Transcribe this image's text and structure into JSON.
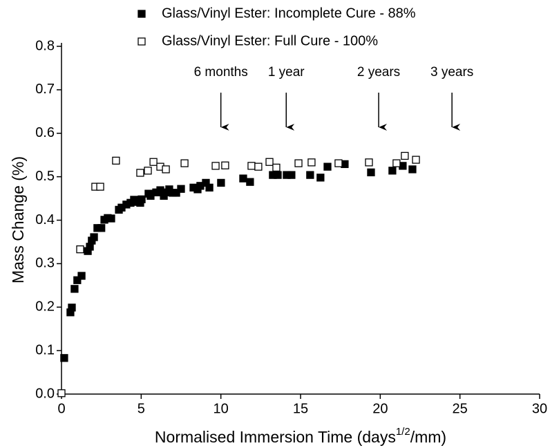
{
  "chart_data": {
    "type": "scatter",
    "x_label": "Normalised Immersion Time (days",
    "x_label_sup": "1/2",
    "x_label_end": "/mm)",
    "y_label": "Mass Change (%)",
    "xlim": [
      0,
      30
    ],
    "xticks": [
      0,
      5,
      10,
      15,
      20,
      25,
      30
    ],
    "ylim": [
      0,
      0.8
    ],
    "yticks": [
      {
        "value": 0,
        "label": "0.0"
      },
      0.1,
      0.2,
      0.3,
      0.4,
      0.5,
      0.6,
      0.7,
      0.8
    ],
    "annotations": [
      {
        "text": "6 months",
        "x": 10
      },
      {
        "text": "1 year",
        "x": 14.1
      },
      {
        "text": "2 years",
        "x": 19.9
      },
      {
        "text": "3 years",
        "x": 24.5
      }
    ],
    "series": [
      {
        "name": "Glass/Vinyl Ester: Incomplete Cure - 88%",
        "color": "#000000",
        "marker": "filled",
        "x": [
          0.17,
          0.56,
          0.65,
          0.82,
          0.99,
          1.26,
          1.65,
          1.78,
          1.9,
          2.04,
          2.25,
          2.5,
          2.69,
          2.9,
          3.12,
          3.6,
          3.77,
          4.07,
          4.33,
          4.55,
          4.72,
          4.94,
          5.03,
          5.46,
          5.59,
          5.94,
          6.2,
          6.42,
          6.59,
          6.76,
          6.98,
          7.2,
          7.5,
          8.28,
          8.54,
          8.71,
          9.06,
          9.28,
          10.01,
          11.4,
          11.83,
          13.26,
          13.57,
          14.13,
          14.43,
          15.6,
          16.25,
          16.69,
          17.77,
          19.42,
          20.76,
          21.41,
          22.02
        ],
        "values": [
          0.083,
          0.188,
          0.199,
          0.242,
          0.262,
          0.272,
          0.329,
          0.339,
          0.353,
          0.361,
          0.382,
          0.382,
          0.401,
          0.405,
          0.404,
          0.424,
          0.429,
          0.436,
          0.44,
          0.447,
          0.442,
          0.44,
          0.448,
          0.461,
          0.456,
          0.464,
          0.469,
          0.456,
          0.464,
          0.471,
          0.463,
          0.463,
          0.472,
          0.475,
          0.471,
          0.479,
          0.486,
          0.475,
          0.486,
          0.496,
          0.488,
          0.504,
          0.504,
          0.504,
          0.504,
          0.504,
          0.498,
          0.523,
          0.529,
          0.51,
          0.514,
          0.525,
          0.517
        ]
      },
      {
        "name": "Glass/Vinyl Ester: Full Cure - 100%",
        "color": "#000000",
        "marker": "open",
        "x": [
          0,
          1.17,
          2.12,
          2.43,
          3.42,
          4.94,
          5.42,
          5.77,
          6.2,
          6.55,
          7.72,
          9.67,
          10.27,
          11.92,
          12.35,
          13.05,
          13.48,
          14.87,
          15.69,
          17.38,
          19.29,
          21.02,
          21.54,
          22.24
        ],
        "values": [
          0.002,
          0.333,
          0.477,
          0.477,
          0.537,
          0.509,
          0.514,
          0.534,
          0.523,
          0.517,
          0.531,
          0.525,
          0.526,
          0.525,
          0.523,
          0.534,
          0.521,
          0.531,
          0.533,
          0.531,
          0.533,
          0.531,
          0.548,
          0.539
        ]
      }
    ]
  }
}
